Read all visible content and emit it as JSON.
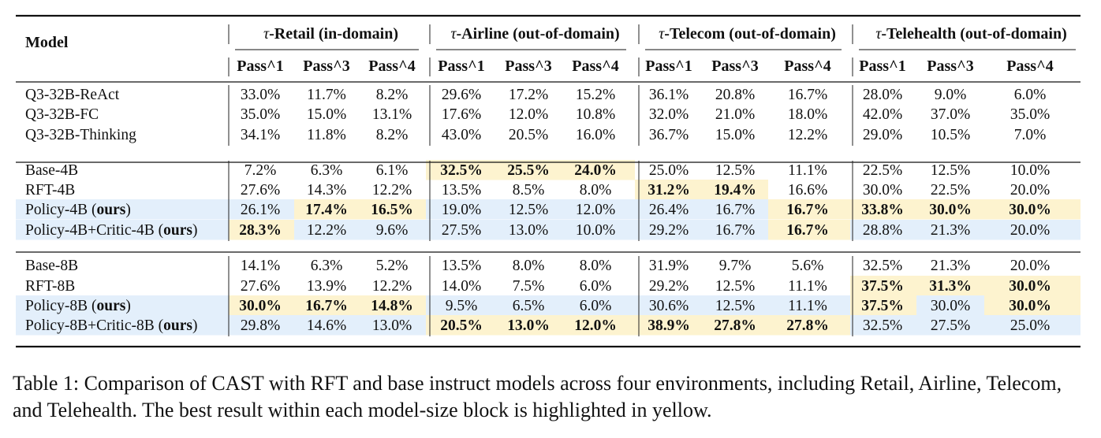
{
  "table": {
    "model_header": "Model",
    "groups": [
      {
        "label": "τ-Retail (in-domain)"
      },
      {
        "label": "τ-Airline (out-of-domain)"
      },
      {
        "label": "τ-Telecom (out-of-domain)"
      },
      {
        "label": "τ-Telehealth (out-of-domain)"
      }
    ],
    "metrics": [
      "Pass^1",
      "Pass^3",
      "Pass^4"
    ],
    "ours_label": "ours",
    "blocks": [
      {
        "rows": [
          {
            "model": "Q3-32B-ReAct",
            "ours": false,
            "values": [
              "33.0%",
              "11.7%",
              "8.2%",
              "29.6%",
              "17.2%",
              "15.2%",
              "36.1%",
              "20.8%",
              "16.7%",
              "28.0%",
              "9.0%",
              "6.0%"
            ]
          },
          {
            "model": "Q3-32B-FC",
            "ours": false,
            "values": [
              "35.0%",
              "15.0%",
              "13.1%",
              "17.6%",
              "12.0%",
              "10.8%",
              "32.0%",
              "21.0%",
              "18.0%",
              "42.0%",
              "37.0%",
              "35.0%"
            ]
          },
          {
            "model": "Q3-32B-Thinking",
            "ours": false,
            "values": [
              "34.1%",
              "11.8%",
              "8.2%",
              "43.0%",
              "20.5%",
              "16.0%",
              "36.7%",
              "15.0%",
              "12.2%",
              "29.0%",
              "10.5%",
              "7.0%"
            ]
          }
        ]
      },
      {
        "rows": [
          {
            "model": "Base-4B",
            "ours": false,
            "values": [
              "7.2%",
              "6.3%",
              "6.1%",
              "32.5%",
              "25.5%",
              "24.0%",
              "25.0%",
              "12.5%",
              "11.1%",
              "22.5%",
              "12.5%",
              "10.0%"
            ],
            "best": [
              3,
              4,
              5
            ]
          },
          {
            "model": "RFT-4B",
            "ours": false,
            "values": [
              "27.6%",
              "14.3%",
              "12.2%",
              "13.5%",
              "8.5%",
              "8.0%",
              "31.2%",
              "19.4%",
              "16.6%",
              "30.0%",
              "22.5%",
              "20.0%"
            ],
            "best": [
              6,
              7
            ]
          },
          {
            "model": "Policy-4B",
            "ours": true,
            "values": [
              "26.1%",
              "17.4%",
              "16.5%",
              "19.0%",
              "12.5%",
              "12.0%",
              "26.4%",
              "16.7%",
              "16.7%",
              "33.8%",
              "30.0%",
              "30.0%"
            ],
            "best": [
              1,
              2,
              8,
              9,
              10,
              11
            ]
          },
          {
            "model": "Policy-4B+Critic-4B",
            "ours": true,
            "values": [
              "28.3%",
              "12.2%",
              "9.6%",
              "27.5%",
              "13.0%",
              "10.0%",
              "29.2%",
              "16.7%",
              "16.7%",
              "28.8%",
              "21.3%",
              "20.0%"
            ],
            "best": [
              0,
              8
            ]
          }
        ]
      },
      {
        "rows": [
          {
            "model": "Base-8B",
            "ours": false,
            "values": [
              "14.1%",
              "6.3%",
              "5.2%",
              "13.5%",
              "8.0%",
              "8.0%",
              "31.9%",
              "9.7%",
              "5.6%",
              "32.5%",
              "21.3%",
              "20.0%"
            ],
            "best": []
          },
          {
            "model": "RFT-8B",
            "ours": false,
            "values": [
              "27.6%",
              "13.9%",
              "12.2%",
              "14.0%",
              "7.5%",
              "6.0%",
              "29.2%",
              "12.5%",
              "11.1%",
              "37.5%",
              "31.3%",
              "30.0%"
            ],
            "best": [
              9,
              10,
              11
            ]
          },
          {
            "model": "Policy-8B",
            "ours": true,
            "values": [
              "30.0%",
              "16.7%",
              "14.8%",
              "9.5%",
              "6.5%",
              "6.0%",
              "30.6%",
              "12.5%",
              "11.1%",
              "37.5%",
              "30.0%",
              "30.0%"
            ],
            "best": [
              0,
              1,
              2,
              9,
              11
            ]
          },
          {
            "model": "Policy-8B+Critic-8B",
            "ours": true,
            "values": [
              "29.8%",
              "14.6%",
              "13.0%",
              "20.5%",
              "13.0%",
              "12.0%",
              "38.9%",
              "27.8%",
              "27.8%",
              "32.5%",
              "27.5%",
              "25.0%"
            ],
            "best": [
              3,
              4,
              5,
              6,
              7,
              8
            ]
          }
        ]
      }
    ]
  },
  "caption": "Table 1: Comparison of CAST with RFT and base instruct models across four environments, including Retail, Airline, Telecom, and Telehealth. The best result within each model-size block is highlighted in yellow."
}
